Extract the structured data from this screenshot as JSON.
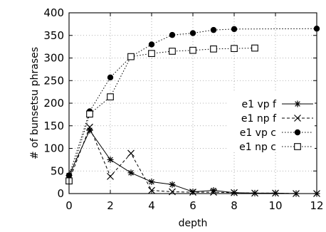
{
  "chart_data": {
    "type": "line",
    "xlabel": "depth",
    "ylabel": "# of bunsetsu phrases",
    "xlim": [
      0,
      12
    ],
    "ylim": [
      0,
      400
    ],
    "x_ticks": [
      0,
      2,
      4,
      6,
      8,
      10,
      12
    ],
    "y_ticks": [
      0,
      50,
      100,
      150,
      200,
      250,
      300,
      350,
      400
    ],
    "grid": true,
    "legend_position": "right",
    "series": [
      {
        "name": "e1 vp f",
        "marker": "asterisk",
        "dash": "solid",
        "x": [
          0,
          1,
          2,
          3,
          4,
          5,
          6,
          7,
          8,
          9,
          10,
          11,
          12
        ],
        "y": [
          40,
          140,
          75,
          46,
          26,
          20,
          4,
          7,
          2,
          1,
          1,
          0,
          0
        ]
      },
      {
        "name": "e1 np f",
        "marker": "cross",
        "dash": "dashed",
        "x": [
          0,
          1,
          2,
          3,
          4,
          5,
          6,
          7,
          8,
          9,
          10,
          11,
          12
        ],
        "y": [
          28,
          147,
          38,
          89,
          7,
          4,
          3,
          3,
          2,
          1,
          1,
          0,
          0
        ]
      },
      {
        "name": "e1 vp c",
        "marker": "filled-circle",
        "dash": "dotted",
        "x": [
          0,
          1,
          2,
          3,
          4,
          5,
          6,
          7,
          8,
          12
        ],
        "y": [
          40,
          182,
          257,
          303,
          330,
          351,
          355,
          362,
          364,
          365
        ]
      },
      {
        "name": "e1 np c",
        "marker": "open-square",
        "dash": "dotted",
        "x": [
          0,
          1,
          2,
          3,
          4,
          5,
          6,
          7,
          8,
          9
        ],
        "y": [
          28,
          176,
          214,
          303,
          310,
          315,
          317,
          320,
          321,
          322
        ]
      }
    ]
  }
}
